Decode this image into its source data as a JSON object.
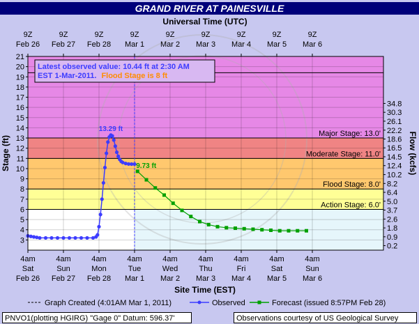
{
  "page_title": "GRAND RIVER AT PAINESVILLE",
  "top_axis_title": "Universal Time (UTC)",
  "bottom_axis_title": "Site Time (EST)",
  "ylabel": "Stage (ft)",
  "y2label": "Flow (kcfs)",
  "annotation": {
    "latest_line1": "Latest observed value: 10.44 ft at 2:30 AM",
    "latest_line2": "EST 1-Mar-2011.",
    "flood_stage": "Flood Stage is 8 ft"
  },
  "legend": {
    "graph_created": "Graph Created (4:01AM Mar 1, 2011)",
    "observed": "Observed",
    "forecast": "Forecast (issued 8:57PM Feb 28)"
  },
  "footer": {
    "left": "PNVO1(plotting HGIRG) \"Gage 0\" Datum: 596.37'",
    "right": "Observations courtesy of US Geological Survey"
  },
  "colors": {
    "major": "#e688e6",
    "moderate": "#f08484",
    "minor": "#ffc86e",
    "action": "#ffff96",
    "normal": "#ffffff",
    "forecast_shade": "#e6f6fb",
    "observed": "#3c3cff",
    "forecast": "#00a000",
    "title_bg": "#00007a"
  },
  "chart_data": {
    "type": "line",
    "title": "GRAND RIVER AT PAINESVILLE",
    "xlabel": "Site Time (EST)",
    "ylabel": "Stage (ft)",
    "y2label": "Flow (kcfs)",
    "ylim": [
      2,
      21
    ],
    "xlim_hours": [
      0,
      120
    ],
    "bottom_ticks": [
      {
        "h": 0,
        "l1": "4am",
        "l2": "Sat",
        "l3": "Feb 26"
      },
      {
        "h": 12,
        "l1": "4am",
        "l2": "Sun",
        "l3": "Feb 27"
      },
      {
        "h": 24,
        "l1": "4am",
        "l2": "Mon",
        "l3": "Feb 28"
      },
      {
        "h": 36,
        "l1": "4am",
        "l2": "Tue",
        "l3": "Mar 1"
      },
      {
        "h": 48,
        "l1": "4am",
        "l2": "Wed",
        "l3": "Mar 2"
      },
      {
        "h": 60,
        "l1": "4am",
        "l2": "Thu",
        "l3": "Mar 3"
      },
      {
        "h": 72,
        "l1": "4am",
        "l2": "Fri",
        "l3": "Mar 4"
      },
      {
        "h": 84,
        "l1": "4am",
        "l2": "Sat",
        "l3": "Mar 5"
      },
      {
        "h": 96,
        "l1": "4am",
        "l2": "Sun",
        "l3": "Mar 6"
      }
    ],
    "top_ticks": [
      {
        "h": 0,
        "l1": "9Z",
        "l2": "Feb 26"
      },
      {
        "h": 12,
        "l1": "9Z",
        "l2": "Feb 27"
      },
      {
        "h": 24,
        "l1": "9Z",
        "l2": "Feb 28"
      },
      {
        "h": 36,
        "l1": "9Z",
        "l2": "Mar 1"
      },
      {
        "h": 48,
        "l1": "9Z",
        "l2": "Mar 2"
      },
      {
        "h": 60,
        "l1": "9Z",
        "l2": "Mar 3"
      },
      {
        "h": 72,
        "l1": "9Z",
        "l2": "Mar 4"
      },
      {
        "h": 84,
        "l1": "9Z",
        "l2": "Mar 5"
      },
      {
        "h": 96,
        "l1": "9Z",
        "l2": "Mar 6"
      }
    ],
    "y_ticks": [
      3,
      4,
      5,
      6,
      7,
      8,
      9,
      10,
      11,
      12,
      13,
      14,
      15,
      16,
      17,
      18,
      19,
      20,
      21
    ],
    "flow_ticks": [
      {
        "stage": 2.44,
        "label": "0.2"
      },
      {
        "stage": 3.31,
        "label": "0.9"
      },
      {
        "stage": 4.18,
        "label": "1.8"
      },
      {
        "stage": 5.05,
        "label": "2.6"
      },
      {
        "stage": 5.93,
        "label": "3.7"
      },
      {
        "stage": 6.8,
        "label": "5.0"
      },
      {
        "stage": 7.67,
        "label": "6.4"
      },
      {
        "stage": 8.54,
        "label": "8.2"
      },
      {
        "stage": 9.41,
        "label": "10.2"
      },
      {
        "stage": 10.29,
        "label": "12.4"
      },
      {
        "stage": 11.16,
        "label": "14.5"
      },
      {
        "stage": 12.03,
        "label": "16.5"
      },
      {
        "stage": 12.9,
        "label": "18.6"
      },
      {
        "stage": 13.77,
        "label": "22.2"
      },
      {
        "stage": 14.65,
        "label": "26.1"
      },
      {
        "stage": 15.52,
        "label": "30.3"
      },
      {
        "stage": 16.39,
        "label": "34.8"
      }
    ],
    "thresholds": [
      {
        "name": "Major Stage: 13.0'",
        "value": 13,
        "band": "major"
      },
      {
        "name": "Moderate Stage: 11.0'",
        "value": 11,
        "band": "moderate"
      },
      {
        "name": "Flood Stage: 8.0'",
        "value": 8,
        "band": "minor"
      },
      {
        "name": "Action Stage: 6.0'",
        "value": 6,
        "band": "action"
      }
    ],
    "record_line": 19.4,
    "graph_created_hour": 36,
    "peak_label": "13.29 ft",
    "forecast_label": "9.73 ft",
    "series": [
      {
        "name": "Observed",
        "x": [
          0,
          1,
          2,
          3,
          4,
          6,
          8,
          10,
          12,
          14,
          16,
          18,
          20,
          22,
          23,
          23.5,
          24,
          24.5,
          25,
          25.5,
          26,
          26.5,
          27,
          27.5,
          28,
          28.5,
          29,
          29.5,
          30,
          30.5,
          31,
          31.5,
          32,
          33,
          34,
          35,
          36
        ],
        "y": [
          3.4,
          3.35,
          3.3,
          3.25,
          3.2,
          3.2,
          3.2,
          3.2,
          3.2,
          3.2,
          3.2,
          3.2,
          3.2,
          3.2,
          3.3,
          3.5,
          4.3,
          5.5,
          7.0,
          8.6,
          10.1,
          11.5,
          12.6,
          13.1,
          13.29,
          13.2,
          12.8,
          12.2,
          11.6,
          11.2,
          10.9,
          10.7,
          10.6,
          10.5,
          10.45,
          10.44,
          10.44
        ]
      },
      {
        "name": "Forecast (issued 8:57PM Feb 28)",
        "x": [
          37,
          40,
          43,
          46,
          49,
          52,
          55,
          58,
          61,
          64,
          67,
          70,
          73,
          76,
          79,
          82,
          85,
          88,
          91,
          94
        ],
        "y": [
          9.73,
          8.9,
          8.1,
          7.4,
          6.6,
          5.9,
          5.3,
          4.8,
          4.5,
          4.3,
          4.2,
          4.15,
          4.1,
          4.05,
          4.0,
          3.95,
          3.9,
          3.9,
          3.9,
          3.9
        ]
      }
    ]
  }
}
